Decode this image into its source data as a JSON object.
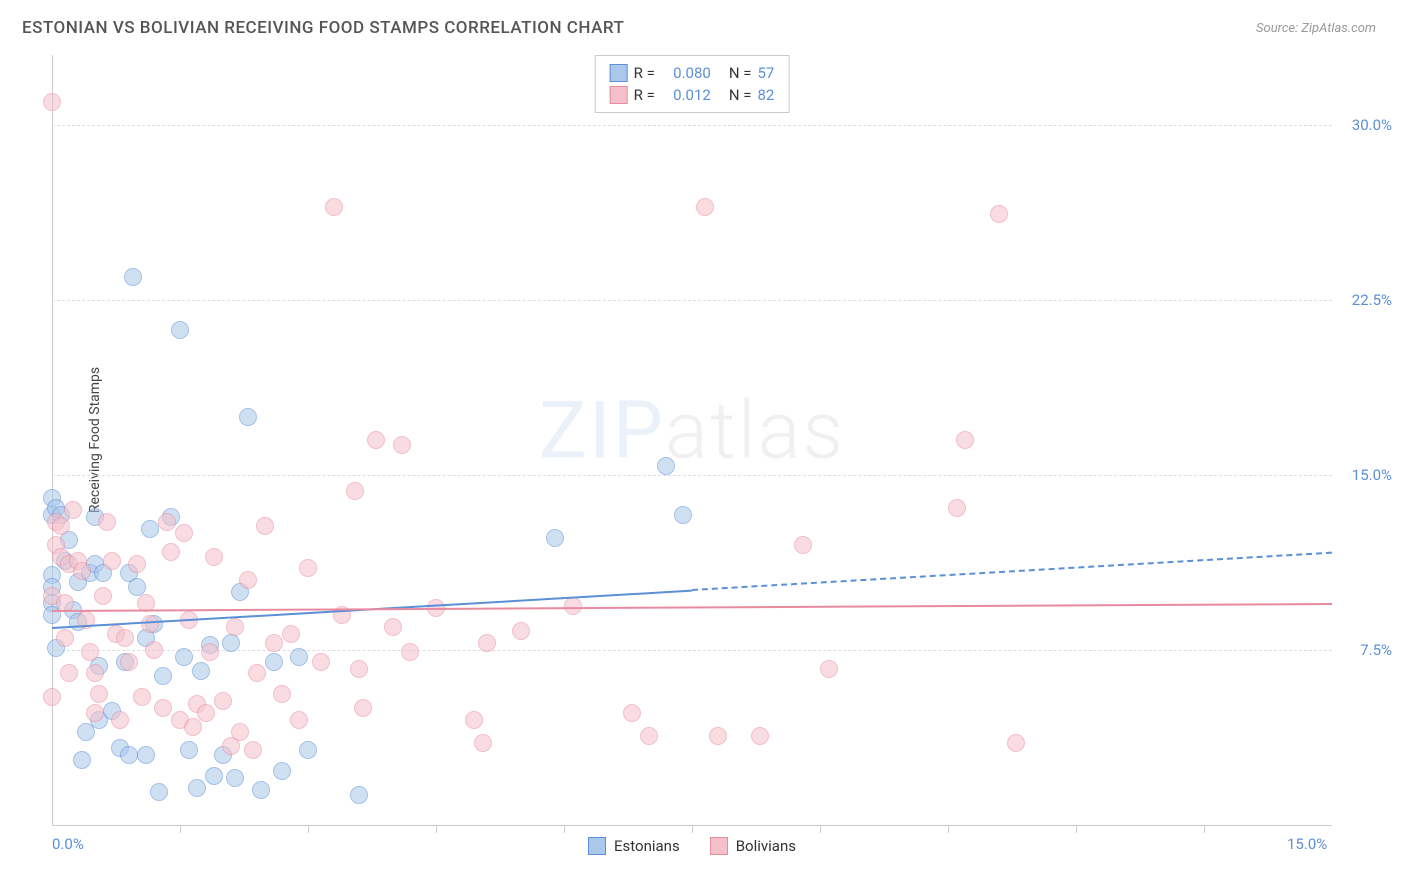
{
  "title": "ESTONIAN VS BOLIVIAN RECEIVING FOOD STAMPS CORRELATION CHART",
  "source": "Source: ZipAtlas.com",
  "y_axis_label": "Receiving Food Stamps",
  "watermark_a": "ZIP",
  "watermark_b": "atlas",
  "chart": {
    "type": "scatter",
    "xlim": [
      0,
      15
    ],
    "ylim": [
      0,
      33
    ],
    "x_ticks": [
      0,
      15
    ],
    "x_tick_labels": [
      "0.0%",
      "15.0%"
    ],
    "x_minor_ticks": [
      1.5,
      3.0,
      4.5,
      6.0,
      7.5,
      9.0,
      10.5,
      12.0,
      13.5
    ],
    "y_ticks": [
      7.5,
      15.0,
      22.5,
      30.0
    ],
    "y_tick_labels": [
      "7.5%",
      "15.0%",
      "22.5%",
      "30.0%"
    ],
    "background_color": "#ffffff",
    "grid_color": "#dddddd",
    "axis_color": "#cccccc",
    "marker_radius": 9,
    "marker_opacity": 0.55,
    "series": [
      {
        "name": "Estonians",
        "color_fill": "#a9c8ea",
        "color_stroke": "#5b8fd6",
        "R": "0.080",
        "N": "57",
        "regression": {
          "x0": 0,
          "y0": 8.5,
          "x1": 7.5,
          "y1": 10.1,
          "dash_extend_x": 15,
          "dash_extend_y": 11.7
        },
        "points": [
          [
            0.0,
            14.0
          ],
          [
            0.0,
            13.3
          ],
          [
            0.0,
            10.7
          ],
          [
            0.0,
            10.2
          ],
          [
            0.0,
            9.5
          ],
          [
            0.0,
            9.0
          ],
          [
            0.05,
            7.6
          ],
          [
            0.05,
            13.6
          ],
          [
            0.1,
            13.3
          ],
          [
            0.15,
            11.3
          ],
          [
            0.2,
            12.2
          ],
          [
            0.25,
            9.2
          ],
          [
            0.3,
            8.7
          ],
          [
            0.3,
            10.4
          ],
          [
            0.35,
            2.8
          ],
          [
            0.4,
            4.0
          ],
          [
            0.45,
            10.8
          ],
          [
            0.5,
            11.2
          ],
          [
            0.5,
            13.2
          ],
          [
            0.55,
            6.8
          ],
          [
            0.55,
            4.5
          ],
          [
            0.6,
            10.8
          ],
          [
            0.7,
            4.9
          ],
          [
            0.8,
            3.3
          ],
          [
            0.85,
            7.0
          ],
          [
            0.9,
            3.0
          ],
          [
            0.9,
            10.8
          ],
          [
            0.95,
            23.5
          ],
          [
            1.0,
            10.2
          ],
          [
            1.1,
            8.0
          ],
          [
            1.1,
            3.0
          ],
          [
            1.15,
            12.7
          ],
          [
            1.2,
            8.6
          ],
          [
            1.25,
            1.4
          ],
          [
            1.3,
            6.4
          ],
          [
            1.4,
            13.2
          ],
          [
            1.5,
            21.2
          ],
          [
            1.55,
            7.2
          ],
          [
            1.6,
            3.2
          ],
          [
            1.7,
            1.6
          ],
          [
            1.75,
            6.6
          ],
          [
            1.85,
            7.7
          ],
          [
            1.9,
            2.1
          ],
          [
            2.0,
            3.0
          ],
          [
            2.1,
            7.8
          ],
          [
            2.15,
            2.0
          ],
          [
            2.2,
            10.0
          ],
          [
            2.3,
            17.5
          ],
          [
            2.45,
            1.5
          ],
          [
            2.6,
            7.0
          ],
          [
            2.7,
            2.3
          ],
          [
            2.9,
            7.2
          ],
          [
            3.0,
            3.2
          ],
          [
            3.6,
            1.3
          ],
          [
            5.9,
            12.3
          ],
          [
            7.2,
            15.4
          ],
          [
            7.4,
            13.3
          ]
        ]
      },
      {
        "name": "Bolivians",
        "color_fill": "#f4c1cb",
        "color_stroke": "#e88ba0",
        "R": "0.012",
        "N": "82",
        "regression": {
          "x0": 0,
          "y0": 9.2,
          "x1": 15,
          "y1": 9.5
        },
        "points": [
          [
            0.0,
            9.8
          ],
          [
            0.0,
            5.5
          ],
          [
            0.0,
            31.0
          ],
          [
            0.05,
            12.0
          ],
          [
            0.05,
            13.0
          ],
          [
            0.1,
            12.8
          ],
          [
            0.1,
            11.5
          ],
          [
            0.15,
            9.5
          ],
          [
            0.15,
            8.0
          ],
          [
            0.2,
            11.2
          ],
          [
            0.2,
            6.5
          ],
          [
            0.25,
            13.5
          ],
          [
            0.3,
            11.3
          ],
          [
            0.35,
            10.9
          ],
          [
            0.4,
            8.8
          ],
          [
            0.45,
            7.4
          ],
          [
            0.5,
            4.8
          ],
          [
            0.5,
            6.5
          ],
          [
            0.55,
            5.6
          ],
          [
            0.6,
            9.8
          ],
          [
            0.65,
            13.0
          ],
          [
            0.7,
            11.3
          ],
          [
            0.75,
            8.2
          ],
          [
            0.8,
            4.5
          ],
          [
            0.85,
            8.0
          ],
          [
            0.9,
            7.0
          ],
          [
            1.0,
            11.2
          ],
          [
            1.05,
            5.5
          ],
          [
            1.1,
            9.5
          ],
          [
            1.15,
            8.6
          ],
          [
            1.2,
            7.5
          ],
          [
            1.3,
            5.0
          ],
          [
            1.35,
            13.0
          ],
          [
            1.4,
            11.7
          ],
          [
            1.5,
            4.5
          ],
          [
            1.55,
            12.5
          ],
          [
            1.6,
            8.8
          ],
          [
            1.65,
            4.2
          ],
          [
            1.7,
            5.2
          ],
          [
            1.8,
            4.8
          ],
          [
            1.85,
            7.4
          ],
          [
            1.9,
            11.5
          ],
          [
            2.0,
            5.3
          ],
          [
            2.1,
            3.4
          ],
          [
            2.15,
            8.5
          ],
          [
            2.2,
            4.0
          ],
          [
            2.3,
            10.5
          ],
          [
            2.35,
            3.2
          ],
          [
            2.4,
            6.5
          ],
          [
            2.5,
            12.8
          ],
          [
            2.6,
            7.8
          ],
          [
            2.7,
            5.6
          ],
          [
            2.8,
            8.2
          ],
          [
            2.9,
            4.5
          ],
          [
            3.0,
            11.0
          ],
          [
            3.15,
            7.0
          ],
          [
            3.3,
            26.5
          ],
          [
            3.4,
            9.0
          ],
          [
            3.55,
            14.3
          ],
          [
            3.6,
            6.7
          ],
          [
            3.65,
            5.0
          ],
          [
            3.8,
            16.5
          ],
          [
            4.0,
            8.5
          ],
          [
            4.1,
            16.3
          ],
          [
            4.2,
            7.4
          ],
          [
            4.5,
            9.3
          ],
          [
            4.95,
            4.5
          ],
          [
            5.05,
            3.5
          ],
          [
            5.1,
            7.8
          ],
          [
            5.5,
            8.3
          ],
          [
            6.1,
            9.4
          ],
          [
            6.8,
            4.8
          ],
          [
            7.0,
            3.8
          ],
          [
            7.65,
            26.5
          ],
          [
            7.8,
            3.8
          ],
          [
            8.3,
            3.8
          ],
          [
            8.8,
            12.0
          ],
          [
            9.1,
            6.7
          ],
          [
            10.6,
            13.6
          ],
          [
            10.7,
            16.5
          ],
          [
            11.1,
            26.2
          ],
          [
            11.3,
            3.5
          ]
        ]
      }
    ]
  },
  "legend_top": {
    "rows": [
      {
        "swatch_fill": "#a9c8ea",
        "swatch_stroke": "#5b8fd6",
        "R_label": "R =",
        "R": "0.080",
        "N_label": "N =",
        "N": "57"
      },
      {
        "swatch_fill": "#f4c1cb",
        "swatch_stroke": "#e88ba0",
        "R_label": "R =",
        "R": "0.012",
        "N_label": "N =",
        "N": "82"
      }
    ]
  },
  "legend_bottom": [
    {
      "swatch_fill": "#a9c8ea",
      "swatch_stroke": "#5b8fd6",
      "label": "Estonians"
    },
    {
      "swatch_fill": "#f4c1cb",
      "swatch_stroke": "#e88ba0",
      "label": "Bolivians"
    }
  ]
}
